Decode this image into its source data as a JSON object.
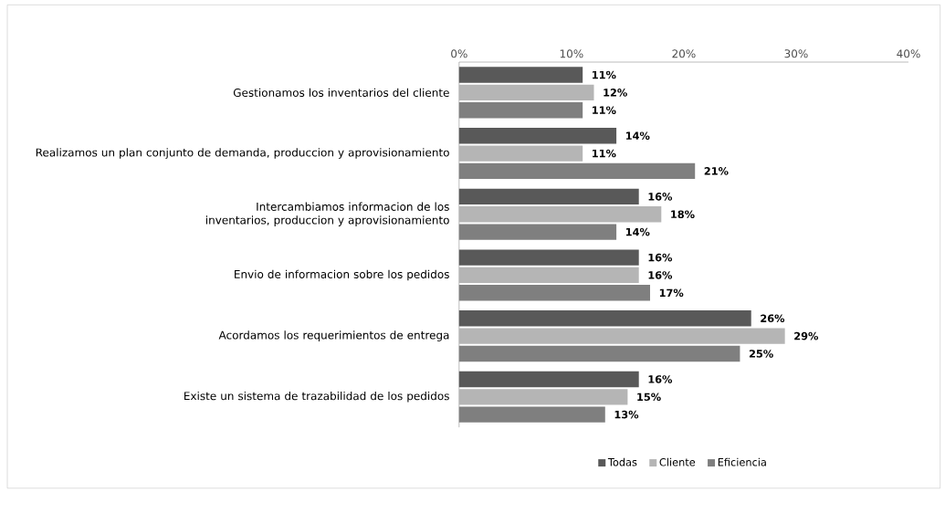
{
  "chart_data": {
    "type": "bar",
    "orientation": "horizontal",
    "legend": "bottom",
    "categories": [
      "Gestionamos los inventarios del cliente",
      "Realizamos un plan conjunto de demanda, produccion y aprovisionamiento",
      "Intercambiamos informacion de los inventarios, produccion y aprovisionamiento",
      "Envio de informacion sobre los pedidos",
      "Acordamos los requerimientos de entrega",
      "Existe un sistema de trazabilidad de los pedidos"
    ],
    "series": [
      {
        "name": "Todas",
        "color": "#595959",
        "values": [
          11,
          14,
          16,
          16,
          26,
          16
        ],
        "value_labels": [
          "11%",
          "14%",
          "16%",
          "16%",
          "26%",
          "16%"
        ]
      },
      {
        "name": "Cliente",
        "color": "#b5b5b5",
        "values": [
          12,
          11,
          18,
          16,
          29,
          15
        ],
        "value_labels": [
          "12%",
          "11%",
          "18%",
          "16%",
          "29%",
          "15%"
        ]
      },
      {
        "name": "Eficiencia",
        "color": "#7f7f7f",
        "values": [
          11,
          21,
          14,
          17,
          25,
          13
        ],
        "value_labels": [
          "11%",
          "21%",
          "14%",
          "17%",
          "25%",
          "13%"
        ]
      }
    ],
    "xlim": [
      0,
      40
    ],
    "xticks": [
      {
        "value": 0,
        "label": "0%"
      },
      {
        "value": 10,
        "label": "10%"
      },
      {
        "value": 20,
        "label": "20%"
      },
      {
        "value": 30,
        "label": "30%"
      },
      {
        "value": 40,
        "label": "40%"
      }
    ]
  }
}
